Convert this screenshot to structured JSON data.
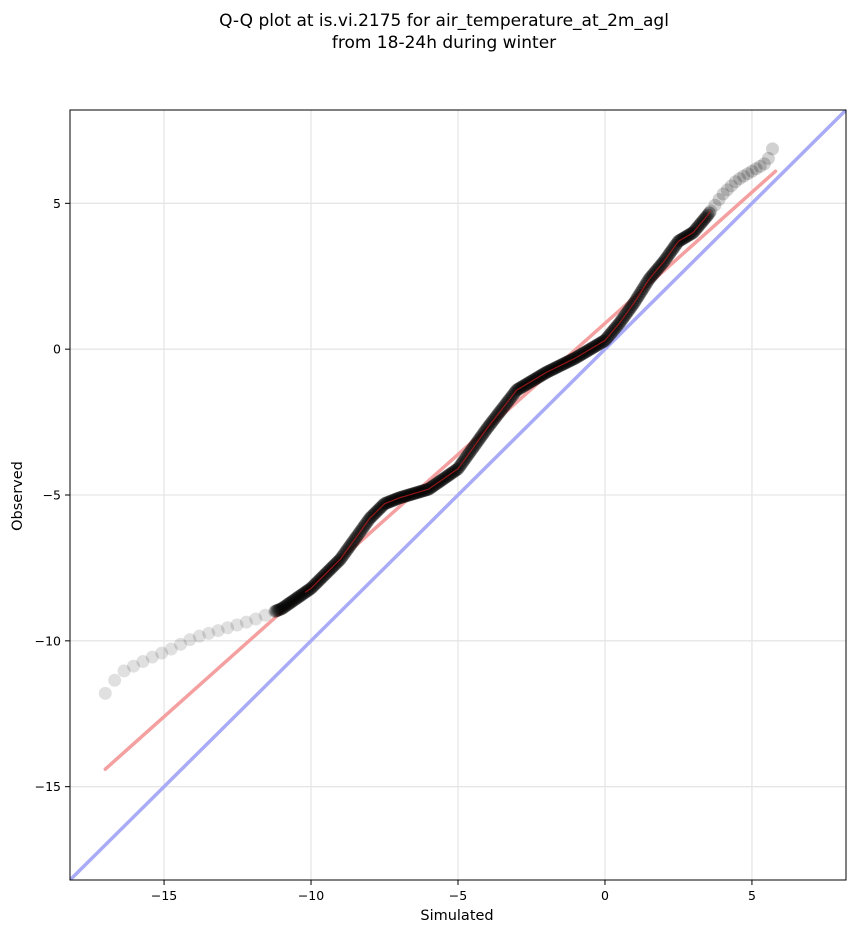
{
  "chart_data": {
    "type": "scatter",
    "title_line1": "Q-Q plot at is.vi.2175 for air_temperature_at_2m_agl",
    "title_line2": "from 18-24h during winter",
    "xlabel": "Simulated",
    "ylabel": "Observed",
    "xlim": [
      -18.2,
      8.2
    ],
    "ylim": [
      -18.2,
      8.2
    ],
    "xticks": [
      -15,
      -10,
      -5,
      0,
      5
    ],
    "yticks": [
      -15,
      -10,
      -5,
      0,
      5
    ],
    "xtick_labels": [
      "−15",
      "−10",
      "−5",
      "0",
      "5"
    ],
    "ytick_labels": [
      "−15",
      "−10",
      "−5",
      "0",
      "5"
    ],
    "grid": true,
    "colors": {
      "points": "#000000",
      "fit_line": "#f4a0a0",
      "identity_line": "#a9abf6",
      "ref_curve": "#b41a1a",
      "grid": "#e6e6e6"
    },
    "identity_line": {
      "x": [
        -18.2,
        8.2
      ],
      "y": [
        -18.2,
        8.2
      ]
    },
    "fit_line": {
      "x": [
        -17.0,
        5.8
      ],
      "y": [
        -14.4,
        6.1
      ]
    },
    "quantile_curve": {
      "x": [
        -17.0,
        -16.5,
        -15.5,
        -14.8,
        -14.0,
        -13.0,
        -12.0,
        -11.0,
        -10.0,
        -9.0,
        -8.0,
        -7.5,
        -7.0,
        -6.5,
        -6.0,
        -5.0,
        -4.0,
        -3.0,
        -2.0,
        -1.0,
        0.0,
        0.5,
        1.0,
        1.5,
        2.0,
        2.5,
        3.0,
        3.5,
        4.0,
        4.5,
        5.0,
        5.5,
        5.8
      ],
      "y": [
        -11.8,
        -11.1,
        -10.6,
        -10.3,
        -9.9,
        -9.6,
        -9.3,
        -8.9,
        -8.2,
        -7.2,
        -5.8,
        -5.3,
        -5.1,
        -4.95,
        -4.8,
        -4.1,
        -2.7,
        -1.4,
        -0.8,
        -0.3,
        0.3,
        0.9,
        1.6,
        2.4,
        3.0,
        3.7,
        4.0,
        4.6,
        5.3,
        5.8,
        6.1,
        6.4,
        7.1
      ]
    },
    "sparse_threshold_x": -11.2
  }
}
